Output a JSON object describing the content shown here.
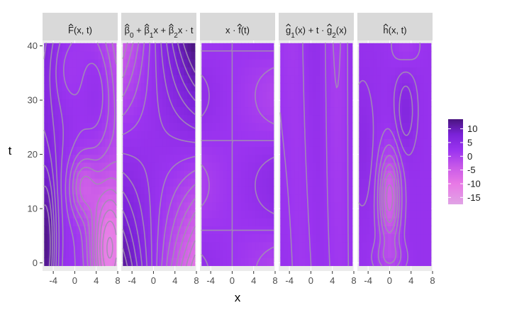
{
  "chart_data": {
    "type": "heatmap",
    "xlabel": "x",
    "ylabel": "t",
    "xlim": [
      -6,
      8
    ],
    "ylim": [
      -1.5,
      41
    ],
    "x_ticks": [
      -4,
      0,
      4,
      8
    ],
    "x_tick_labels": [
      "-4",
      "0",
      "4",
      "8"
    ],
    "y_ticks": [
      0,
      10,
      20,
      30,
      40
    ],
    "y_tick_labels": [
      "0",
      "10",
      "20",
      "30",
      "40"
    ],
    "panels": [
      {
        "strip": "F̂(x, t)",
        "strip_parts": [
          [
            "F",
            "^",
            ""
          ],
          [
            "(x, t)",
            "",
            ""
          ]
        ]
      },
      {
        "strip": "β̂₀ + β̂₁x + β̂₂x · t",
        "strip_parts": [
          [
            "β",
            "^",
            "0"
          ],
          [
            " + ",
            "",
            ""
          ],
          [
            "β",
            "^",
            "1"
          ],
          [
            "x + ",
            "",
            ""
          ],
          [
            "β",
            "^",
            "2"
          ],
          [
            "x · t",
            "",
            ""
          ]
        ]
      },
      {
        "strip": "x · f̂(t)",
        "strip_parts": [
          [
            "x · ",
            "",
            ""
          ],
          [
            "f",
            "^",
            ""
          ],
          [
            "(t)",
            "",
            ""
          ]
        ]
      },
      {
        "strip": "ĝ₁(x) + t · ĝ₂(x)",
        "strip_parts": [
          [
            "g",
            "^",
            "1"
          ],
          [
            "(x) + t · ",
            "",
            ""
          ],
          [
            "g",
            "^",
            "2"
          ],
          [
            "(x)",
            "",
            ""
          ]
        ]
      },
      {
        "strip": "ĥ(x, t)",
        "strip_parts": [
          [
            "h",
            "^",
            ""
          ],
          [
            "(x, t)",
            "",
            ""
          ]
        ]
      }
    ],
    "legend": {
      "position": "right",
      "ticks": [
        10,
        5,
        0,
        -5,
        -10,
        -15
      ],
      "tick_labels": [
        "10",
        "5",
        "0",
        "-5",
        "-10",
        "-15"
      ],
      "range": [
        -17.5,
        13.5
      ],
      "colors": [
        "#e0a3e5",
        "#e879e6",
        "#c95ae8",
        "#9b34f0",
        "#7a22d8",
        "#4a157f"
      ],
      "stops": [
        -17.5,
        -10,
        -4,
        2,
        8,
        13.5
      ]
    },
    "grid": true,
    "panel_background": "#ebebeb",
    "strip_background": "#d9d9d9",
    "contour_color": "#a38eb3"
  }
}
